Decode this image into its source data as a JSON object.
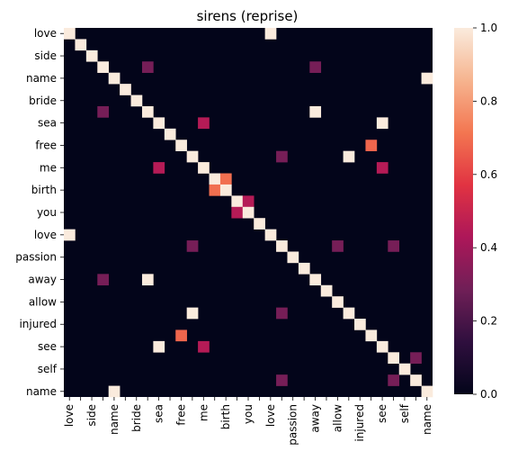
{
  "chart_data": {
    "type": "heatmap",
    "title": "sirens (reprise)",
    "row_labels": [
      "love",
      "side",
      "name",
      "bride",
      "sea",
      "free",
      "me",
      "birth",
      "you",
      "love",
      "passion",
      "away",
      "allow",
      "injured",
      "see",
      "self",
      "name"
    ],
    "column_labels": [
      "love",
      "",
      "side",
      "",
      "name",
      "",
      "bride",
      "",
      "sea",
      "",
      "free",
      "",
      "me",
      "",
      "birth",
      "",
      "you",
      "",
      "love",
      "",
      "passion",
      "",
      "away",
      "",
      "allow",
      "",
      "injured",
      "",
      "see",
      "",
      "self",
      "",
      "name"
    ],
    "grid_size": 33,
    "cells": [
      [
        0,
        0,
        1.0
      ],
      [
        0,
        18,
        1.0
      ],
      [
        1,
        1,
        1.0
      ],
      [
        2,
        2,
        1.0
      ],
      [
        3,
        3,
        1.0
      ],
      [
        3,
        7,
        0.3
      ],
      [
        3,
        22,
        0.3
      ],
      [
        4,
        4,
        1.0
      ],
      [
        4,
        32,
        1.0
      ],
      [
        5,
        5,
        1.0
      ],
      [
        6,
        6,
        1.0
      ],
      [
        7,
        7,
        1.0
      ],
      [
        7,
        3,
        0.3
      ],
      [
        7,
        22,
        1.0
      ],
      [
        8,
        8,
        1.0
      ],
      [
        8,
        12,
        0.45
      ],
      [
        8,
        28,
        1.0
      ],
      [
        9,
        9,
        1.0
      ],
      [
        10,
        10,
        1.0
      ],
      [
        10,
        27,
        0.68
      ],
      [
        11,
        11,
        1.0
      ],
      [
        11,
        19,
        0.3
      ],
      [
        11,
        25,
        1.0
      ],
      [
        12,
        12,
        1.0
      ],
      [
        12,
        8,
        0.45
      ],
      [
        12,
        28,
        0.45
      ],
      [
        13,
        13,
        1.0
      ],
      [
        13,
        14,
        0.7
      ],
      [
        14,
        13,
        0.7
      ],
      [
        14,
        14,
        1.0
      ],
      [
        15,
        15,
        1.0
      ],
      [
        15,
        16,
        0.45
      ],
      [
        16,
        15,
        0.45
      ],
      [
        16,
        16,
        1.0
      ],
      [
        17,
        17,
        1.0
      ],
      [
        18,
        18,
        1.0
      ],
      [
        18,
        0,
        1.0
      ],
      [
        19,
        19,
        1.0
      ],
      [
        19,
        11,
        0.3
      ],
      [
        19,
        24,
        0.3
      ],
      [
        19,
        29,
        0.3
      ],
      [
        20,
        20,
        1.0
      ],
      [
        21,
        21,
        1.0
      ],
      [
        22,
        22,
        1.0
      ],
      [
        22,
        3,
        0.3
      ],
      [
        22,
        7,
        1.0
      ],
      [
        23,
        23,
        1.0
      ],
      [
        24,
        24,
        1.0
      ],
      [
        25,
        25,
        1.0
      ],
      [
        25,
        11,
        1.0
      ],
      [
        25,
        19,
        0.3
      ],
      [
        26,
        26,
        1.0
      ],
      [
        27,
        27,
        1.0
      ],
      [
        27,
        10,
        0.68
      ],
      [
        28,
        28,
        1.0
      ],
      [
        28,
        8,
        1.0
      ],
      [
        28,
        12,
        0.45
      ],
      [
        29,
        29,
        1.0
      ],
      [
        29,
        31,
        0.3
      ],
      [
        30,
        30,
        1.0
      ],
      [
        31,
        31,
        1.0
      ],
      [
        31,
        19,
        0.3
      ],
      [
        31,
        29,
        0.3
      ],
      [
        32,
        32,
        1.0
      ],
      [
        32,
        4,
        1.0
      ]
    ],
    "colorbar": {
      "min": 0.0,
      "max": 1.0,
      "ticks": [
        "0.0",
        "0.2",
        "0.4",
        "0.6",
        "0.8",
        "1.0"
      ]
    },
    "colormap": [
      "#03051a",
      "#2f0f3e",
      "#701f57",
      "#ad1759",
      "#e13342",
      "#f37651",
      "#f6b48f",
      "#faebdd"
    ],
    "grid": false,
    "legend": "colorbar-right"
  }
}
